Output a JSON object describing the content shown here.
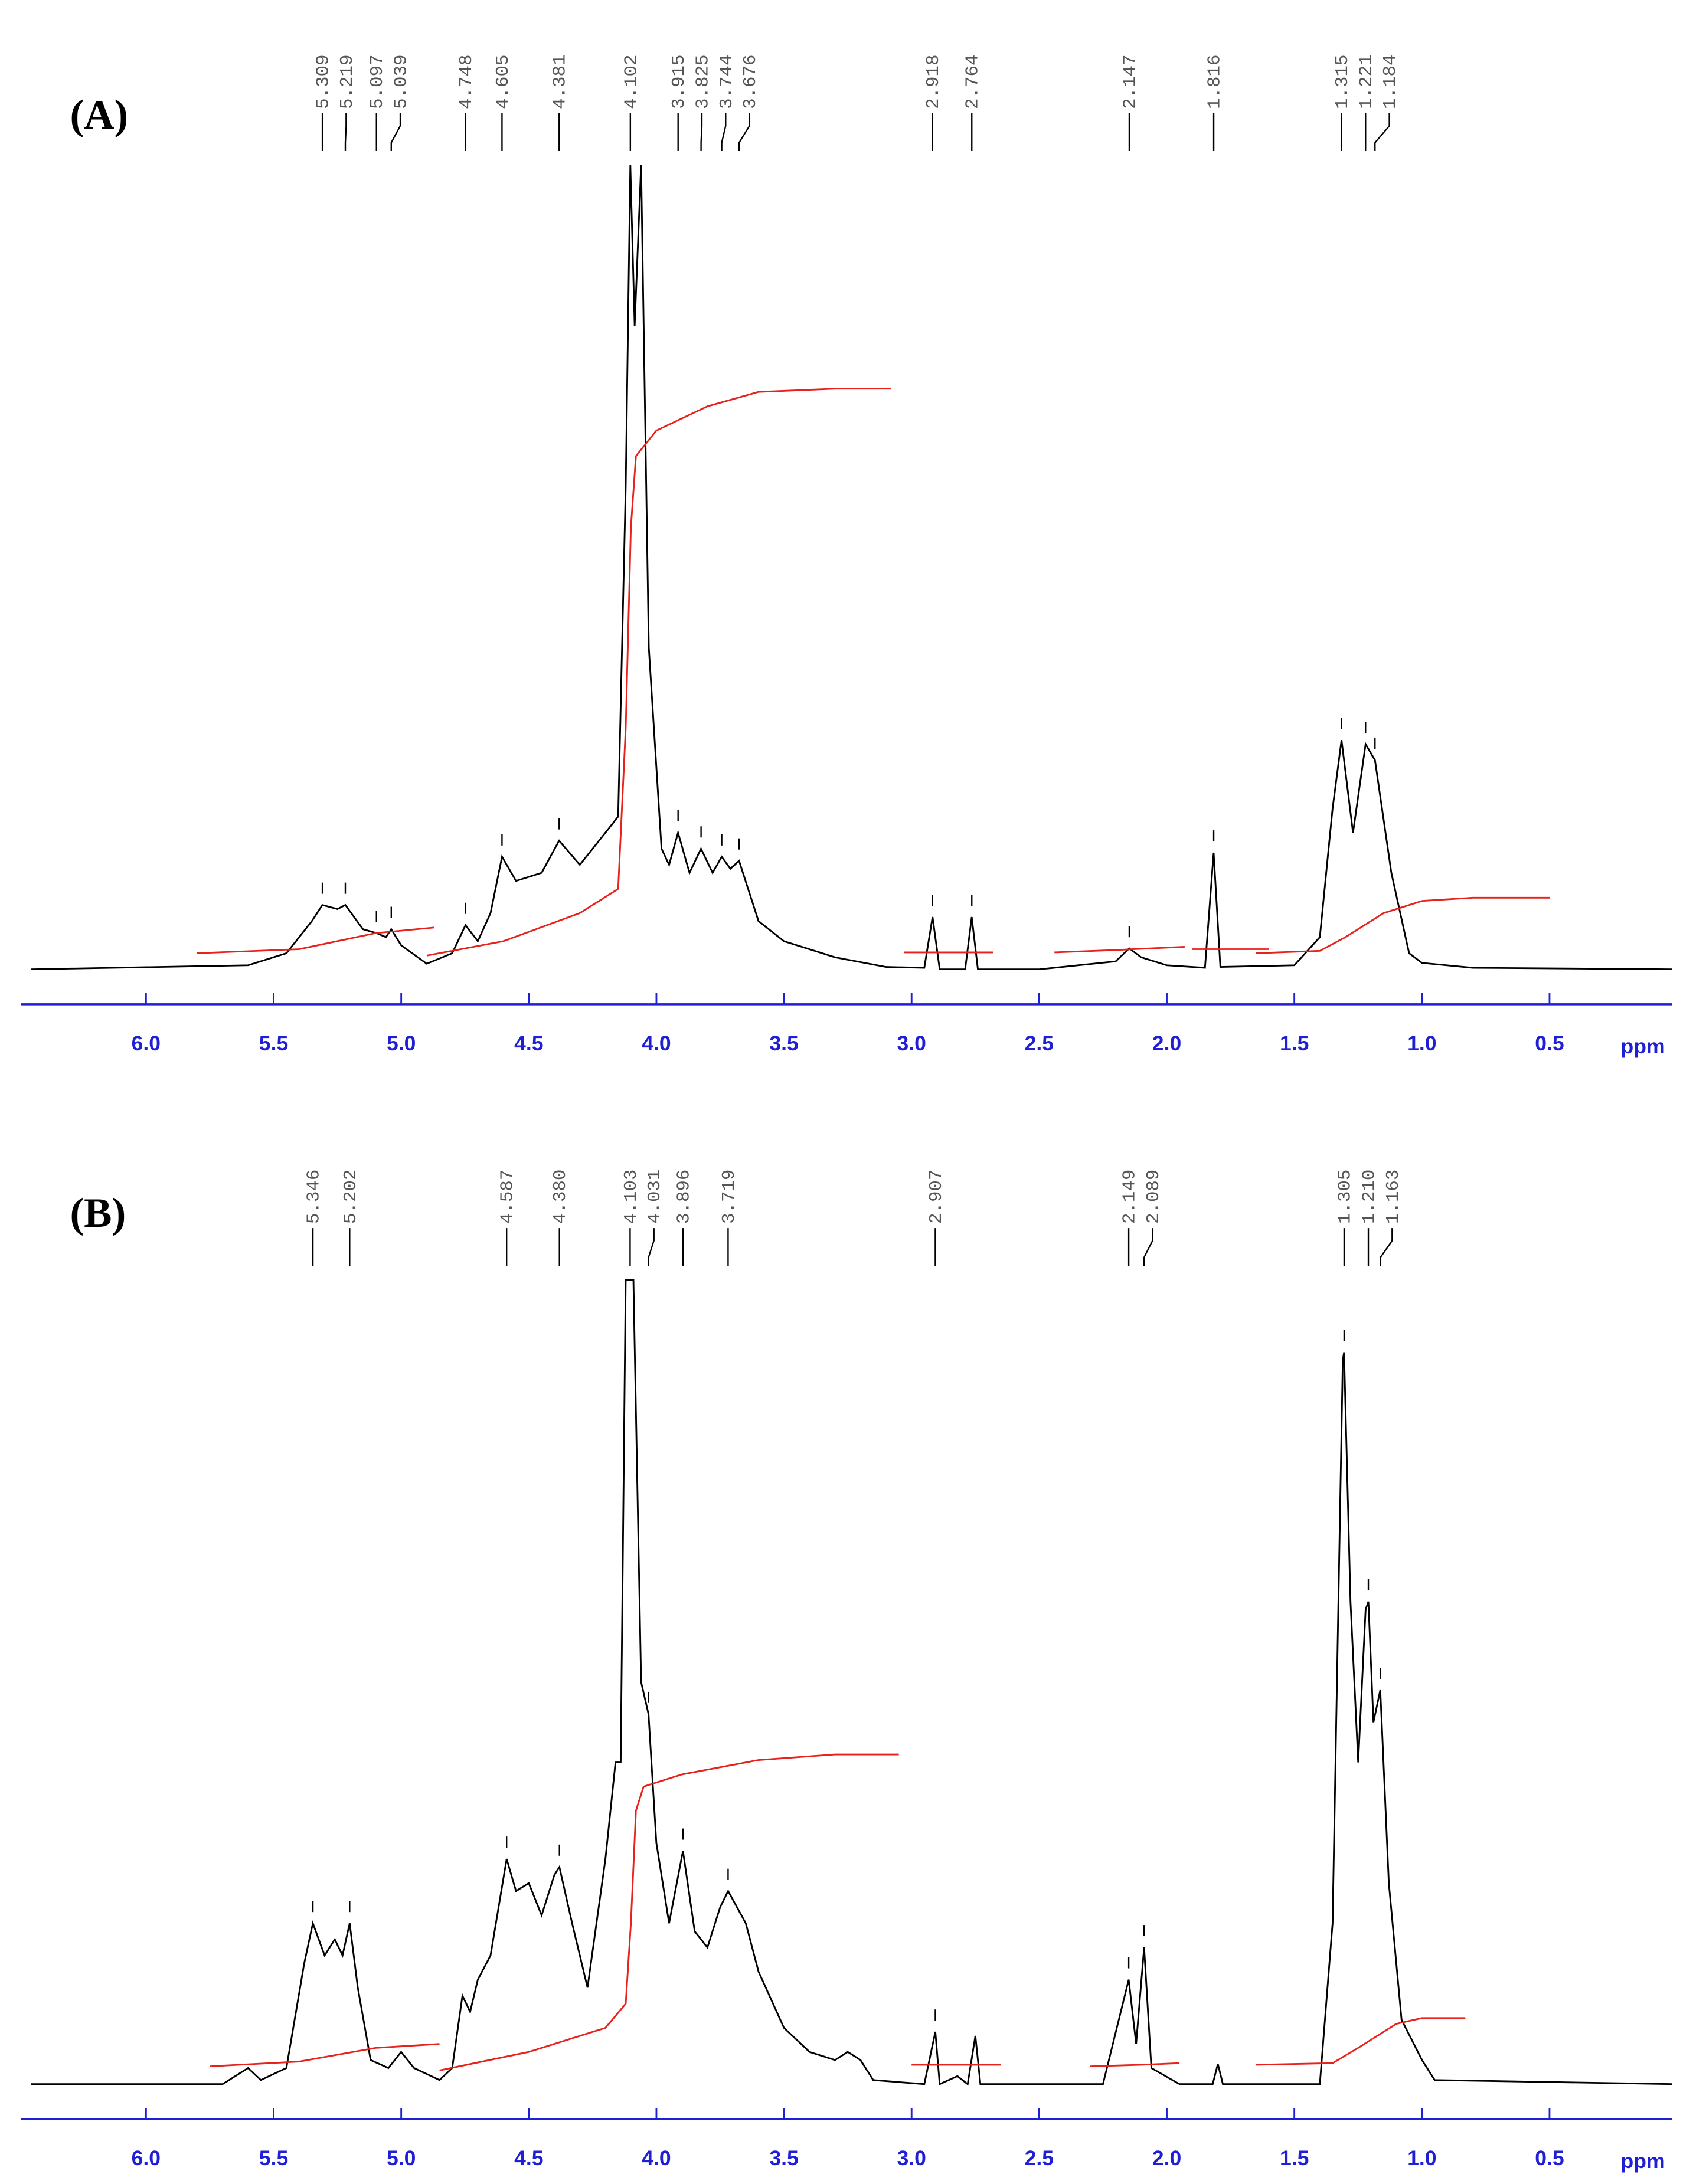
{
  "chart_data": [
    {
      "type": "line",
      "panel_label": "(A)",
      "x_label": "ppm",
      "color": "#000000",
      "integral_color": "#e8211a",
      "axis_color": "#1f1fd6",
      "xlim": [
        6.49,
        0.02
      ],
      "ylim": [
        0,
        100
      ],
      "xticks": [
        {
          "value": 6,
          "label": "6.0"
        },
        5.5,
        {
          "value": 5,
          "label": "5.0"
        },
        4.5,
        {
          "value": 4,
          "label": "4.0"
        },
        3.5,
        {
          "value": 3,
          "label": "3.0"
        },
        2.5,
        {
          "value": 2,
          "label": "2.0"
        },
        1.5,
        {
          "value": 1,
          "label": "1.0"
        },
        0.5
      ],
      "peaks": [
        5.309,
        5.219,
        5.097,
        5.039,
        4.748,
        4.605,
        4.381,
        4.102,
        3.915,
        3.825,
        3.744,
        3.676,
        2.918,
        2.764,
        2.147,
        1.816,
        1.315,
        1.221,
        1.184
      ],
      "x": [
        6.45,
        5.6,
        5.45,
        5.35,
        5.309,
        5.25,
        5.219,
        5.15,
        5.097,
        5.06,
        5.039,
        5.0,
        4.9,
        4.8,
        4.748,
        4.7,
        4.65,
        4.605,
        4.55,
        4.45,
        4.381,
        4.3,
        4.2,
        4.15,
        4.12,
        4.102,
        4.085,
        4.06,
        4.03,
        3.98,
        3.95,
        3.915,
        3.87,
        3.825,
        3.78,
        3.744,
        3.71,
        3.676,
        3.6,
        3.5,
        3.3,
        3.1,
        2.95,
        2.918,
        2.89,
        2.79,
        2.764,
        2.74,
        2.5,
        2.2,
        2.147,
        2.1,
        2.0,
        1.85,
        1.816,
        1.79,
        1.5,
        1.4,
        1.35,
        1.315,
        1.27,
        1.221,
        1.184,
        1.12,
        1.05,
        1.0,
        0.8,
        0.02
      ],
      "values": [
        0,
        0.5,
        2,
        6,
        8,
        7.5,
        8,
        5,
        4.5,
        4,
        5,
        3,
        0.7,
        2,
        5.5,
        3.5,
        7,
        14,
        11,
        12,
        16,
        13,
        17,
        19,
        60,
        100,
        80,
        100,
        40,
        15,
        13,
        17,
        12,
        15,
        12,
        14,
        12.5,
        13.5,
        6,
        3.5,
        1.5,
        0.3,
        0.2,
        6.5,
        0,
        0,
        6.5,
        0,
        0,
        1,
        2.6,
        1.5,
        0.5,
        0.2,
        14.5,
        0.3,
        0.5,
        4,
        20,
        28.5,
        17,
        28,
        26,
        12,
        2,
        0.8,
        0.2,
        0
      ],
      "integrals": [
        {
          "x": [
            5.8,
            5.4,
            5.1,
            4.87
          ],
          "values": [
            2,
            2.5,
            4.5,
            5.2
          ]
        },
        {
          "x": [
            4.9,
            4.6,
            4.3,
            4.15,
            4.12,
            4.1,
            4.08,
            4.0,
            3.8,
            3.6,
            3.3,
            3.08
          ],
          "values": [
            1.7,
            3.5,
            7,
            10,
            30,
            55,
            63.8,
            67,
            70,
            71.8,
            72.2,
            72.2
          ]
        },
        {
          "x": [
            3.03,
            2.68
          ],
          "values": [
            2.1,
            2.1
          ]
        },
        {
          "x": [
            2.44,
            2.2,
            1.93
          ],
          "values": [
            2.1,
            2.4,
            2.8
          ]
        },
        {
          "x": [
            1.9,
            1.6
          ],
          "values": [
            2.5,
            2.5
          ]
        },
        {
          "x": [
            1.65,
            1.4,
            1.3,
            1.15,
            1.0,
            0.8,
            0.5
          ],
          "values": [
            2,
            2.3,
            4,
            7,
            8.5,
            8.9,
            8.9
          ]
        }
      ]
    },
    {
      "type": "line",
      "panel_label": "(B)",
      "x_label": "ppm",
      "color": "#000000",
      "integral_color": "#e8211a",
      "axis_color": "#1f1fd6",
      "xlim": [
        6.49,
        0.02
      ],
      "ylim": [
        0,
        100
      ],
      "xticks": [
        {
          "value": 6,
          "label": "6.0"
        },
        5.5,
        {
          "value": 5,
          "label": "5.0"
        },
        4.5,
        {
          "value": 4,
          "label": "4.0"
        },
        3.5,
        {
          "value": 3,
          "label": "3.0"
        },
        2.5,
        {
          "value": 2,
          "label": "2.0"
        },
        1.5,
        {
          "value": 1,
          "label": "1.0"
        },
        0.5
      ],
      "peaks": [
        5.346,
        5.202,
        4.587,
        {
          "value": 4.38,
          "label": "4.380"
        },
        4.103,
        4.031,
        3.896,
        3.719,
        2.907,
        2.149,
        2.089,
        1.305,
        {
          "value": 1.21,
          "label": "1.210"
        },
        1.163
      ],
      "x": [
        6.45,
        5.7,
        5.6,
        5.55,
        5.45,
        5.38,
        5.346,
        5.3,
        5.26,
        5.23,
        5.202,
        5.17,
        5.12,
        5.05,
        5.0,
        4.95,
        4.85,
        4.8,
        4.76,
        4.73,
        4.7,
        4.65,
        4.587,
        4.55,
        4.5,
        4.45,
        4.4,
        4.38,
        4.33,
        4.27,
        4.2,
        4.16,
        4.14,
        4.12,
        4.103,
        4.09,
        4.06,
        4.031,
        4.0,
        3.95,
        3.896,
        3.85,
        3.8,
        3.75,
        3.719,
        3.65,
        3.6,
        3.5,
        3.4,
        3.3,
        3.25,
        3.2,
        3.15,
        2.95,
        2.907,
        2.89,
        2.82,
        2.78,
        2.75,
        2.73,
        2.25,
        2.149,
        2.12,
        2.089,
        2.06,
        1.95,
        1.82,
        1.8,
        1.78,
        1.4,
        1.35,
        1.31,
        1.305,
        1.28,
        1.25,
        1.221,
        1.21,
        1.19,
        1.163,
        1.13,
        1.08,
        1.0,
        0.95,
        0.02
      ],
      "values": [
        0,
        0,
        2,
        0.5,
        2,
        15,
        20,
        16,
        18,
        16,
        20,
        12,
        3,
        2,
        4,
        2,
        0.5,
        2,
        11,
        9,
        13,
        16,
        28,
        24,
        25,
        21,
        26,
        27,
        20,
        12,
        28,
        40,
        40,
        100,
        100,
        100,
        50,
        46,
        30,
        20,
        29,
        19,
        17,
        22,
        24,
        20,
        14,
        7,
        4,
        3,
        4,
        3,
        0.5,
        0,
        6.5,
        0,
        1,
        0,
        6,
        0,
        0,
        13,
        5,
        17,
        2,
        0,
        0,
        2.5,
        0,
        0,
        20,
        90,
        91,
        60,
        40,
        59,
        60,
        45,
        49,
        25,
        8,
        3,
        0.5,
        0
      ],
      "integrals": [
        {
          "x": [
            5.75,
            5.4,
            5.1,
            4.85
          ],
          "values": [
            2.2,
            2.8,
            4.5,
            5
          ]
        },
        {
          "x": [
            4.85,
            4.5,
            4.2,
            4.12,
            4.1,
            4.08,
            4.05,
            3.9,
            3.6,
            3.3,
            3.05
          ],
          "values": [
            1.7,
            4,
            7,
            10,
            20,
            34,
            37,
            38.5,
            40.3,
            41,
            41
          ]
        },
        {
          "x": [
            3.0,
            2.65
          ],
          "values": [
            2.4,
            2.4
          ]
        },
        {
          "x": [
            2.3,
            2.1,
            1.95
          ],
          "values": [
            2.2,
            2.4,
            2.6
          ]
        },
        {
          "x": [
            1.65,
            1.35,
            1.25,
            1.1,
            1.0,
            0.83
          ],
          "values": [
            2.4,
            2.6,
            4.5,
            7.5,
            8.2,
            8.2
          ]
        }
      ]
    }
  ]
}
